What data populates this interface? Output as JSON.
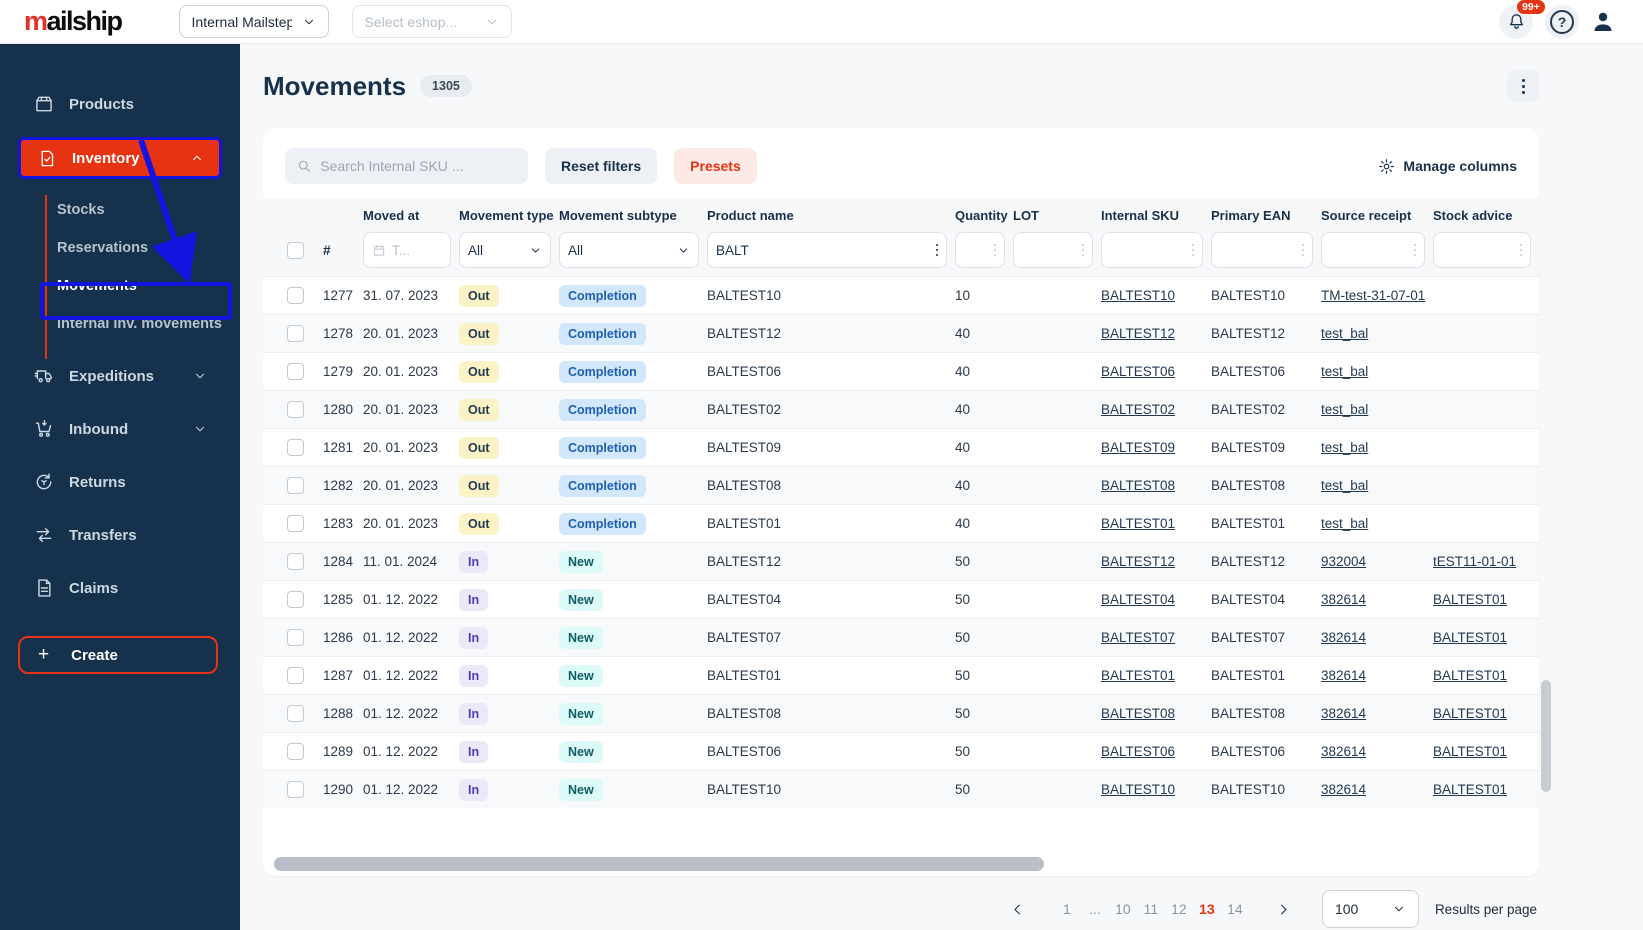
{
  "colors": {
    "accent_red": "#e63312",
    "navy": "#17314b",
    "sidebar_bg": "#16314b",
    "annotation_blue": "#1414e0",
    "badge_out_bg": "#fbf2c5",
    "badge_completion_bg": "#d2e7fb",
    "badge_completion_text": "#1f5fb0",
    "badge_in_bg": "#ece8f9",
    "badge_in_text": "#4a3fae",
    "badge_new_bg": "#dcfaf7",
    "badge_new_text": "#0f5e66"
  },
  "topbar": {
    "logo_prefix": "m",
    "logo_rest": "ailship",
    "workspace_select_value": "Internal Mailstep",
    "eshop_select_placeholder": "Select eshop...",
    "notifications_count": "99+"
  },
  "sidebar": {
    "items": [
      {
        "label": "Products"
      },
      {
        "label": "Inventory"
      },
      {
        "label": "Expeditions"
      },
      {
        "label": "Inbound"
      },
      {
        "label": "Returns"
      },
      {
        "label": "Transfers"
      },
      {
        "label": "Claims"
      }
    ],
    "inventory_children": [
      {
        "label": "Stocks"
      },
      {
        "label": "Reservations"
      },
      {
        "label": "Movements",
        "current": true
      },
      {
        "label": "Internal inv. movements"
      }
    ],
    "create_label": "Create"
  },
  "page": {
    "title": "Movements",
    "count_badge": "1305"
  },
  "toolbar": {
    "search_placeholder": "Search Internal SKU ...",
    "reset_filters_label": "Reset filters",
    "presets_label": "Presets",
    "manage_columns_label": "Manage columns"
  },
  "table": {
    "hash_label": "#",
    "columns": [
      "Moved at",
      "Movement type",
      "Movement subtype",
      "Product name",
      "Quantity",
      "LOT",
      "Internal SKU",
      "Primary EAN",
      "Source receipt",
      "Stock advice"
    ],
    "filters": {
      "moved_at_placeholder": "T...",
      "movement_type_value": "All",
      "movement_subtype_value": "All",
      "product_name_value": "BALT"
    },
    "rows": [
      {
        "id": "1277",
        "moved_at": "31. 07. 2023",
        "type": "Out",
        "subtype": "Completion",
        "product": "BALTEST10",
        "qty": "10",
        "lot": "",
        "sku": "BALTEST10",
        "ean": "BALTEST10",
        "source": "TM-test-31-07-01",
        "advice": ""
      },
      {
        "id": "1278",
        "moved_at": "20. 01. 2023",
        "type": "Out",
        "subtype": "Completion",
        "product": "BALTEST12",
        "qty": "40",
        "lot": "",
        "sku": "BALTEST12",
        "ean": "BALTEST12",
        "source": "test_bal",
        "advice": ""
      },
      {
        "id": "1279",
        "moved_at": "20. 01. 2023",
        "type": "Out",
        "subtype": "Completion",
        "product": "BALTEST06",
        "qty": "40",
        "lot": "",
        "sku": "BALTEST06",
        "ean": "BALTEST06",
        "source": "test_bal",
        "advice": ""
      },
      {
        "id": "1280",
        "moved_at": "20. 01. 2023",
        "type": "Out",
        "subtype": "Completion",
        "product": "BALTEST02",
        "qty": "40",
        "lot": "",
        "sku": "BALTEST02",
        "ean": "BALTEST02",
        "source": "test_bal",
        "advice": ""
      },
      {
        "id": "1281",
        "moved_at": "20. 01. 2023",
        "type": "Out",
        "subtype": "Completion",
        "product": "BALTEST09",
        "qty": "40",
        "lot": "",
        "sku": "BALTEST09",
        "ean": "BALTEST09",
        "source": "test_bal",
        "advice": ""
      },
      {
        "id": "1282",
        "moved_at": "20. 01. 2023",
        "type": "Out",
        "subtype": "Completion",
        "product": "BALTEST08",
        "qty": "40",
        "lot": "",
        "sku": "BALTEST08",
        "ean": "BALTEST08",
        "source": "test_bal",
        "advice": ""
      },
      {
        "id": "1283",
        "moved_at": "20. 01. 2023",
        "type": "Out",
        "subtype": "Completion",
        "product": "BALTEST01",
        "qty": "40",
        "lot": "",
        "sku": "BALTEST01",
        "ean": "BALTEST01",
        "source": "test_bal",
        "advice": ""
      },
      {
        "id": "1284",
        "moved_at": "11. 01. 2024",
        "type": "In",
        "subtype": "New",
        "product": "BALTEST12",
        "qty": "50",
        "lot": "",
        "sku": "BALTEST12",
        "ean": "BALTEST12",
        "source": "932004",
        "advice": "tEST11-01-01"
      },
      {
        "id": "1285",
        "moved_at": "01. 12. 2022",
        "type": "In",
        "subtype": "New",
        "product": "BALTEST04",
        "qty": "50",
        "lot": "",
        "sku": "BALTEST04",
        "ean": "BALTEST04",
        "source": "382614",
        "advice": "BALTEST01"
      },
      {
        "id": "1286",
        "moved_at": "01. 12. 2022",
        "type": "In",
        "subtype": "New",
        "product": "BALTEST07",
        "qty": "50",
        "lot": "",
        "sku": "BALTEST07",
        "ean": "BALTEST07",
        "source": "382614",
        "advice": "BALTEST01"
      },
      {
        "id": "1287",
        "moved_at": "01. 12. 2022",
        "type": "In",
        "subtype": "New",
        "product": "BALTEST01",
        "qty": "50",
        "lot": "",
        "sku": "BALTEST01",
        "ean": "BALTEST01",
        "source": "382614",
        "advice": "BALTEST01"
      },
      {
        "id": "1288",
        "moved_at": "01. 12. 2022",
        "type": "In",
        "subtype": "New",
        "product": "BALTEST08",
        "qty": "50",
        "lot": "",
        "sku": "BALTEST08",
        "ean": "BALTEST08",
        "source": "382614",
        "advice": "BALTEST01"
      },
      {
        "id": "1289",
        "moved_at": "01. 12. 2022",
        "type": "In",
        "subtype": "New",
        "product": "BALTEST06",
        "qty": "50",
        "lot": "",
        "sku": "BALTEST06",
        "ean": "BALTEST06",
        "source": "382614",
        "advice": "BALTEST01"
      },
      {
        "id": "1290",
        "moved_at": "01. 12. 2022",
        "type": "In",
        "subtype": "New",
        "product": "BALTEST10",
        "qty": "50",
        "lot": "",
        "sku": "BALTEST10",
        "ean": "BALTEST10",
        "source": "382614",
        "advice": "BALTEST01"
      }
    ]
  },
  "pagination": {
    "pages": [
      {
        "label": "1"
      },
      {
        "label": "...",
        "ellipsis": true
      },
      {
        "label": "10"
      },
      {
        "label": "11"
      },
      {
        "label": "12"
      },
      {
        "label": "13",
        "current": true
      },
      {
        "label": "14"
      }
    ],
    "per_page_value": "100",
    "results_label": "Results per page"
  },
  "icons": {
    "plus": "+",
    "help": "?"
  }
}
